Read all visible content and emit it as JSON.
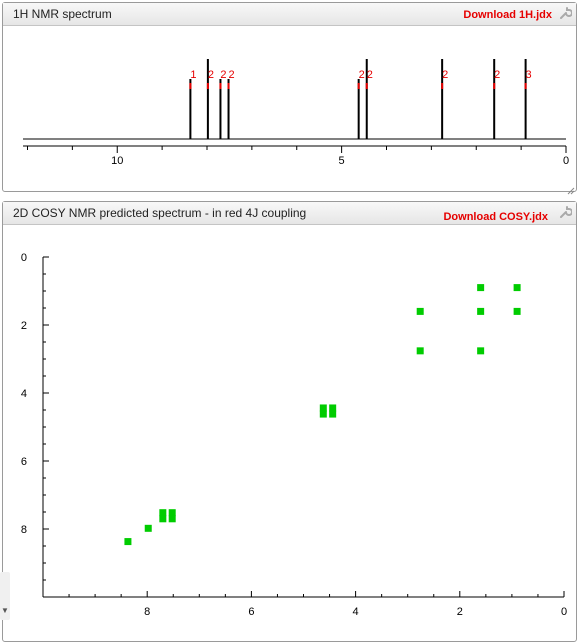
{
  "panel1": {
    "title": "1H NMR spectrum",
    "download_label": "Download 1H.jdx"
  },
  "panel2": {
    "title": "2D COSY NMR predicted spectrum - in red 4J coupling",
    "download_label": "Download COSY.jdx"
  },
  "colors": {
    "peak_label": "#e60000",
    "cosy_point": "#00cc00",
    "line": "#000000"
  },
  "chart_data": [
    {
      "type": "line",
      "title": "1H NMR spectrum",
      "x_axis_reversed": true,
      "xlim": [
        12.1,
        0
      ],
      "xticks": [
        "10",
        "5",
        "0"
      ],
      "xtick_values": [
        10,
        5,
        0
      ],
      "peaks": [
        {
          "ppm": 8.37,
          "label": "1"
        },
        {
          "ppm": 7.98,
          "label": "2"
        },
        {
          "ppm": 7.7,
          "label": "2"
        },
        {
          "ppm": 7.52,
          "label": "2"
        },
        {
          "ppm": 4.62,
          "label": "2"
        },
        {
          "ppm": 4.44,
          "label": "2"
        },
        {
          "ppm": 2.76,
          "label": "2"
        },
        {
          "ppm": 1.6,
          "label": "2"
        },
        {
          "ppm": 0.9,
          "label": "3"
        }
      ],
      "grid": false
    },
    {
      "type": "scatter",
      "title": "2D COSY NMR predicted spectrum - in red 4J coupling",
      "xlim": [
        10,
        0
      ],
      "ylim": [
        0,
        10
      ],
      "xticks": [
        "8",
        "6",
        "4",
        "2",
        "0"
      ],
      "xtick_values": [
        8,
        6,
        4,
        2,
        0
      ],
      "yticks": [
        "0",
        "2",
        "4",
        "6",
        "8"
      ],
      "ytick_values": [
        0,
        2,
        4,
        6,
        8
      ],
      "points": [
        {
          "x": 8.37,
          "y": 8.37
        },
        {
          "x": 7.98,
          "y": 7.98
        },
        {
          "x": 7.7,
          "y": 7.52
        },
        {
          "x": 7.52,
          "y": 7.52
        },
        {
          "x": 7.7,
          "y": 7.7
        },
        {
          "x": 7.52,
          "y": 7.7
        },
        {
          "x": 4.62,
          "y": 4.44
        },
        {
          "x": 4.44,
          "y": 4.44
        },
        {
          "x": 4.62,
          "y": 4.62
        },
        {
          "x": 4.44,
          "y": 4.62
        },
        {
          "x": 2.76,
          "y": 1.6
        },
        {
          "x": 2.76,
          "y": 2.76
        },
        {
          "x": 1.6,
          "y": 0.9
        },
        {
          "x": 1.6,
          "y": 1.6
        },
        {
          "x": 1.6,
          "y": 2.76
        },
        {
          "x": 0.9,
          "y": 0.9
        },
        {
          "x": 0.9,
          "y": 1.6
        }
      ],
      "grid": false
    }
  ]
}
